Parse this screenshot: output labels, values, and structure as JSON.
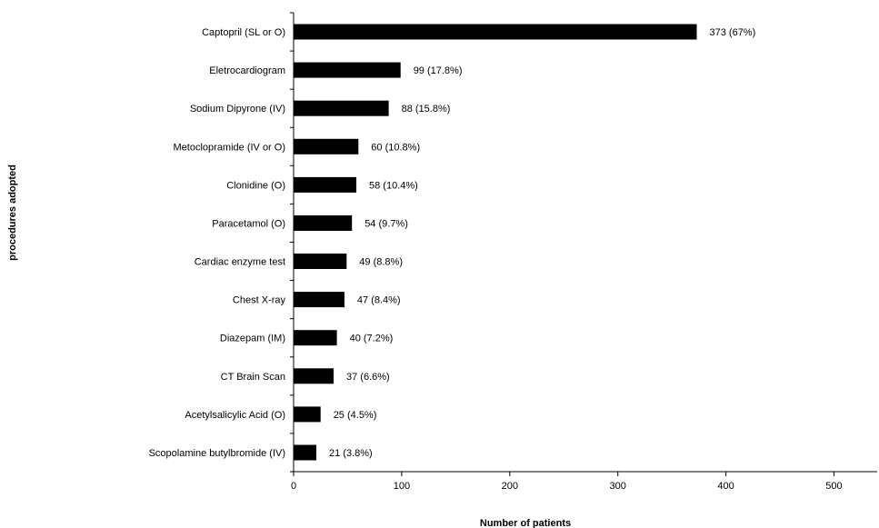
{
  "chart_data": {
    "type": "bar",
    "orientation": "horizontal",
    "title": "",
    "xlabel": "Number of patients",
    "ylabel": "procedures adopted",
    "xlim": [
      0,
      540
    ],
    "xticks": [
      0,
      100,
      200,
      300,
      400,
      500
    ],
    "grid": false,
    "legend": "none",
    "bar_color": "#000000",
    "categories": [
      "Captopril (SL or O)",
      "Eletrocardiogram",
      "Sodium Dipyrone (IV)",
      "Metoclopramide (IV or O)",
      "Clonidine (O)",
      "Paracetamol (O)",
      "Cardiac enzyme test",
      "Chest X-ray",
      "Diazepam (IM)",
      "CT Brain Scan",
      "Acetylsalicylic Acid (O)",
      "Scopolamine butylbromide (IV)"
    ],
    "values": [
      373,
      99,
      88,
      60,
      58,
      54,
      49,
      47,
      40,
      37,
      25,
      21
    ],
    "data_labels": [
      "373 (67%)",
      "99 (17.8%)",
      "88 (15.8%)",
      "60 (10.8%)",
      "58 (10.4%)",
      "54 (9.7%)",
      "49 (8.8%)",
      "47 (8.4%)",
      "40 (7.2%)",
      "37 (6.6%)",
      "25 (4.5%)",
      "21 (3.8%)"
    ]
  }
}
